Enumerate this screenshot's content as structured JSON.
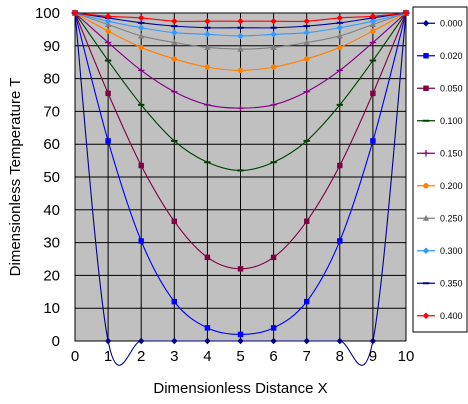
{
  "chart_data": {
    "type": "line",
    "xlabel": "Dimensionless Distance X",
    "ylabel": "Dimensionless Temperature T",
    "xlim": [
      0,
      10
    ],
    "ylim": [
      0,
      100
    ],
    "xticks": [
      0,
      1,
      2,
      3,
      4,
      5,
      6,
      7,
      8,
      9,
      10
    ],
    "yticks": [
      0,
      10,
      20,
      30,
      40,
      50,
      60,
      70,
      80,
      90,
      100
    ],
    "grid": true,
    "plot_background": "#c0c0c0",
    "grid_color": "#000000",
    "legend_position": "right",
    "x": [
      0,
      1,
      2,
      3,
      4,
      5,
      6,
      7,
      8,
      9,
      10
    ],
    "series": [
      {
        "name": "0.000",
        "color": "#00008b",
        "marker": "diamond",
        "values": [
          100,
          0,
          0,
          0,
          0,
          0,
          0,
          0,
          0,
          0,
          100
        ]
      },
      {
        "name": "0.020",
        "color": "#0000ff",
        "marker": "square",
        "values": [
          100,
          61,
          30.5,
          12,
          4,
          2,
          4,
          12,
          30.5,
          61,
          100
        ]
      },
      {
        "name": "0.050",
        "color": "#800040",
        "marker": "square",
        "values": [
          100,
          75.5,
          53.5,
          36.5,
          25.5,
          22,
          25.5,
          36.5,
          53.5,
          75.5,
          100
        ]
      },
      {
        "name": "0.100",
        "color": "#004000",
        "marker": "dash",
        "values": [
          100,
          85.5,
          72,
          61,
          54.5,
          52,
          54.5,
          61,
          72,
          85.5,
          100
        ]
      },
      {
        "name": "0.150",
        "color": "#800080",
        "marker": "plus",
        "values": [
          100,
          91,
          82.5,
          76,
          72,
          71,
          72,
          76,
          82.5,
          91,
          100
        ]
      },
      {
        "name": "0.200",
        "color": "#ff8000",
        "marker": "circle",
        "values": [
          100,
          94.5,
          89.5,
          86,
          83.5,
          82.5,
          83.5,
          86,
          89.5,
          94.5,
          100
        ]
      },
      {
        "name": "0.250",
        "color": "#808080",
        "marker": "triangle",
        "values": [
          100,
          96.5,
          93,
          91,
          89.5,
          89,
          89.5,
          91,
          93,
          96.5,
          100
        ]
      },
      {
        "name": "0.300",
        "color": "#3399ff",
        "marker": "diamond",
        "values": [
          100,
          97.5,
          95.5,
          94,
          93.5,
          93,
          93.5,
          94,
          95.5,
          97.5,
          100
        ]
      },
      {
        "name": "0.350",
        "color": "#0000a0",
        "marker": "dash",
        "values": [
          100,
          98.5,
          97,
          96,
          95.5,
          95.5,
          95.5,
          96,
          97,
          98.5,
          100
        ]
      },
      {
        "name": "0.400",
        "color": "#ff0000",
        "marker": "diamond",
        "values": [
          100,
          99,
          98.5,
          97.5,
          97.5,
          97.5,
          97.5,
          97.5,
          98.5,
          99,
          100
        ]
      }
    ]
  }
}
